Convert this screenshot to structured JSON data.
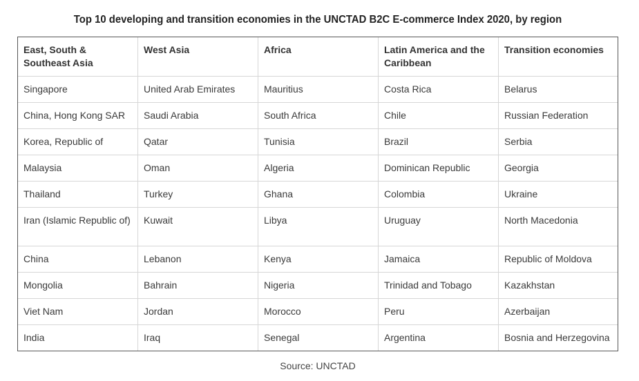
{
  "title": "Top 10 developing and transition economies in the UNCTAD B2C E-commerce Index 2020, by region",
  "columns": [
    "East, South & Southeast Asia",
    "West Asia",
    "Africa",
    "Latin America and the Caribbean",
    "Transition economies"
  ],
  "rows": [
    [
      "Singapore",
      "United Arab Emirates",
      "Mauritius",
      "Costa Rica",
      "Belarus"
    ],
    [
      "China, Hong Kong SAR",
      "Saudi Arabia",
      "South Africa",
      "Chile",
      "Russian Federation"
    ],
    [
      "Korea, Republic of",
      "Qatar",
      "Tunisia",
      "Brazil",
      "Serbia"
    ],
    [
      "Malaysia",
      "Oman",
      "Algeria",
      "Dominican Republic",
      "Georgia"
    ],
    [
      "Thailand",
      "Turkey",
      "Ghana",
      "Colombia",
      "Ukraine"
    ],
    [
      "Iran (Islamic Republic of)",
      "Kuwait",
      "Libya",
      "Uruguay",
      "North Macedonia"
    ],
    [
      "China",
      "Lebanon",
      "Kenya",
      "Jamaica",
      "Republic of Moldova"
    ],
    [
      "Mongolia",
      "Bahrain",
      "Nigeria",
      "Trinidad and Tobago",
      "Kazakhstan"
    ],
    [
      "Viet Nam",
      "Jordan",
      "Morocco",
      "Peru",
      "Azerbaijan"
    ],
    [
      "India",
      "Iraq",
      "Senegal",
      "Argentina",
      "Bosnia and Herzegovina"
    ]
  ],
  "source": "Source: UNCTAD"
}
